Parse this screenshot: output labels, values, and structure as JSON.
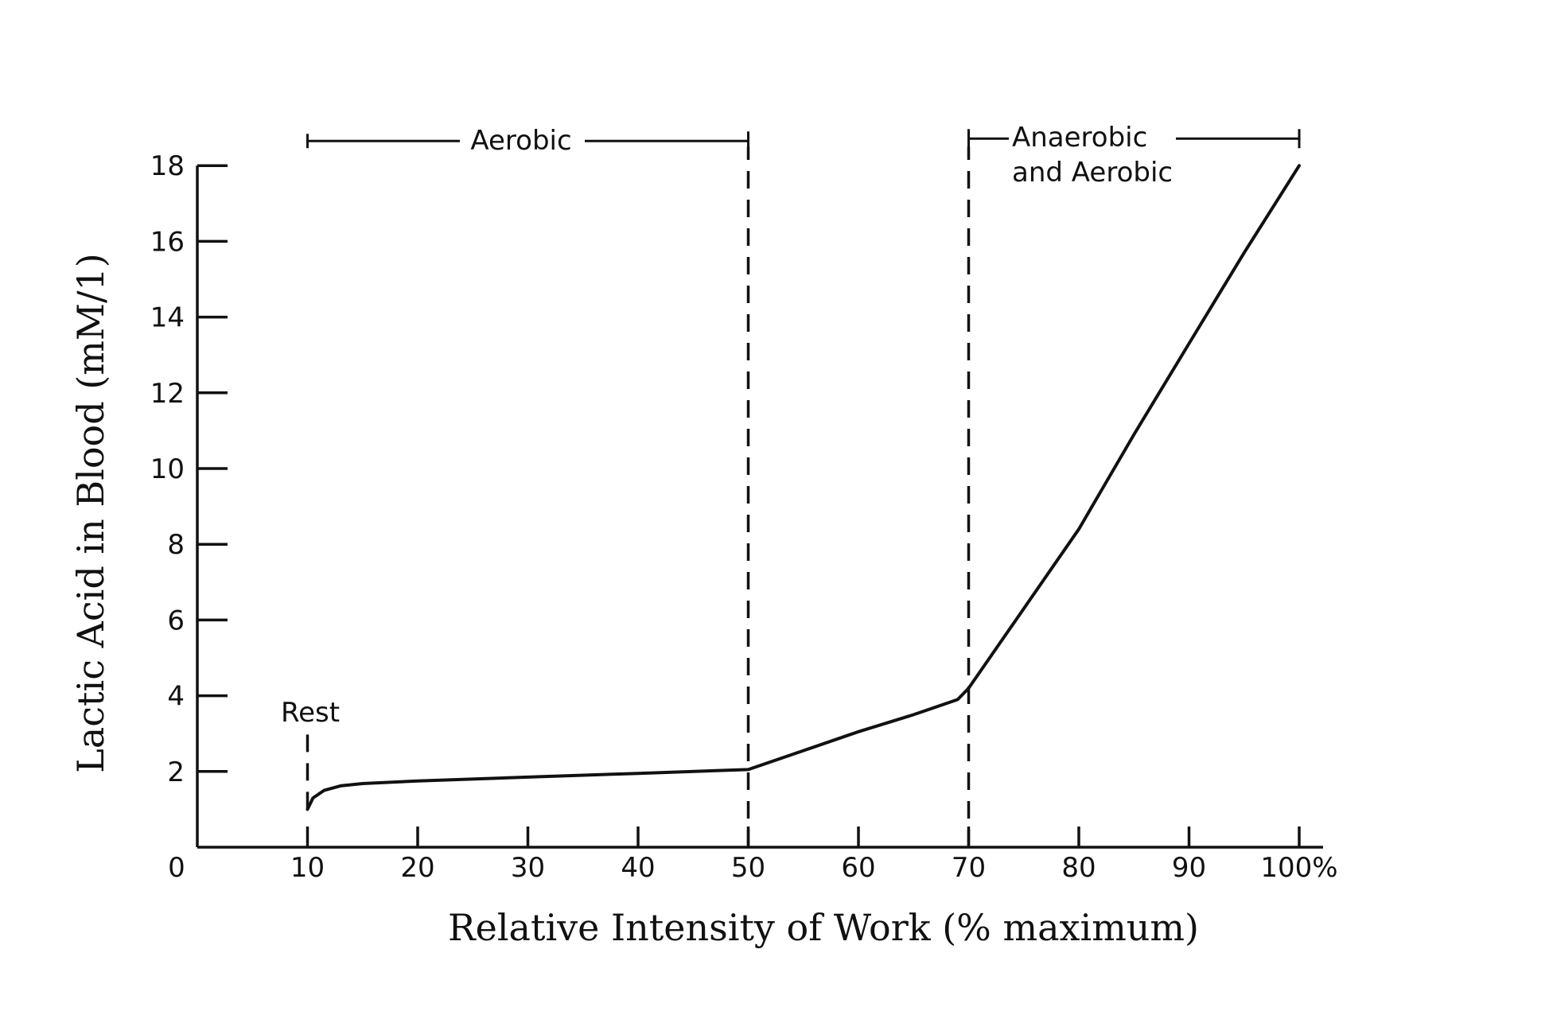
{
  "chart_data": {
    "type": "line",
    "title": "",
    "xlabel": "Relative Intensity of Work (% maximum)",
    "ylabel": "Lactic Acid in Blood (mM/1)",
    "xlim": [
      0,
      100
    ],
    "ylim": [
      0,
      18
    ],
    "origin_label": "0",
    "x_ticks": [
      {
        "value": 10,
        "label": "10"
      },
      {
        "value": 20,
        "label": "20"
      },
      {
        "value": 30,
        "label": "30"
      },
      {
        "value": 40,
        "label": "40"
      },
      {
        "value": 50,
        "label": "50"
      },
      {
        "value": 60,
        "label": "60"
      },
      {
        "value": 70,
        "label": "70"
      },
      {
        "value": 80,
        "label": "80"
      },
      {
        "value": 90,
        "label": "90"
      },
      {
        "value": 100,
        "label": "100%"
      }
    ],
    "y_ticks": [
      {
        "value": 2,
        "label": "2"
      },
      {
        "value": 4,
        "label": "4"
      },
      {
        "value": 6,
        "label": "6"
      },
      {
        "value": 8,
        "label": "8"
      },
      {
        "value": 10,
        "label": "10"
      },
      {
        "value": 12,
        "label": "12"
      },
      {
        "value": 14,
        "label": "14"
      },
      {
        "value": 16,
        "label": "16"
      },
      {
        "value": 18,
        "label": "18"
      }
    ],
    "grid": false,
    "series": [
      {
        "x": [
          10,
          10.5,
          11.5,
          13,
          15,
          20,
          30,
          40,
          50,
          55,
          60,
          65,
          69,
          70,
          75,
          80,
          85,
          90,
          95,
          100
        ],
        "y": [
          1.0,
          1.3,
          1.5,
          1.62,
          1.68,
          1.75,
          1.85,
          1.95,
          2.05,
          2.55,
          3.05,
          3.5,
          3.9,
          4.2,
          6.3,
          8.4,
          10.9,
          13.3,
          15.7,
          18.0
        ]
      }
    ],
    "reference_lines": [
      {
        "x": 10,
        "y_from": 1.0,
        "y_to": 3.2,
        "style": "dashed"
      },
      {
        "x": 50,
        "y_from": 0,
        "y_to": 18.5,
        "style": "dashed"
      },
      {
        "x": 70,
        "y_from": 0,
        "y_to": 18.5,
        "style": "dashed"
      }
    ],
    "annotations": [
      {
        "text": "Rest",
        "x": 10,
        "anchor": "above-dashed"
      }
    ],
    "regions": [
      {
        "label_lines": [
          "Aerobic"
        ],
        "x_from": 10,
        "x_to": 50
      },
      {
        "label_lines": [
          "Anaerobic",
          "and Aerobic"
        ],
        "x_from": 70,
        "x_to": 100
      }
    ]
  }
}
